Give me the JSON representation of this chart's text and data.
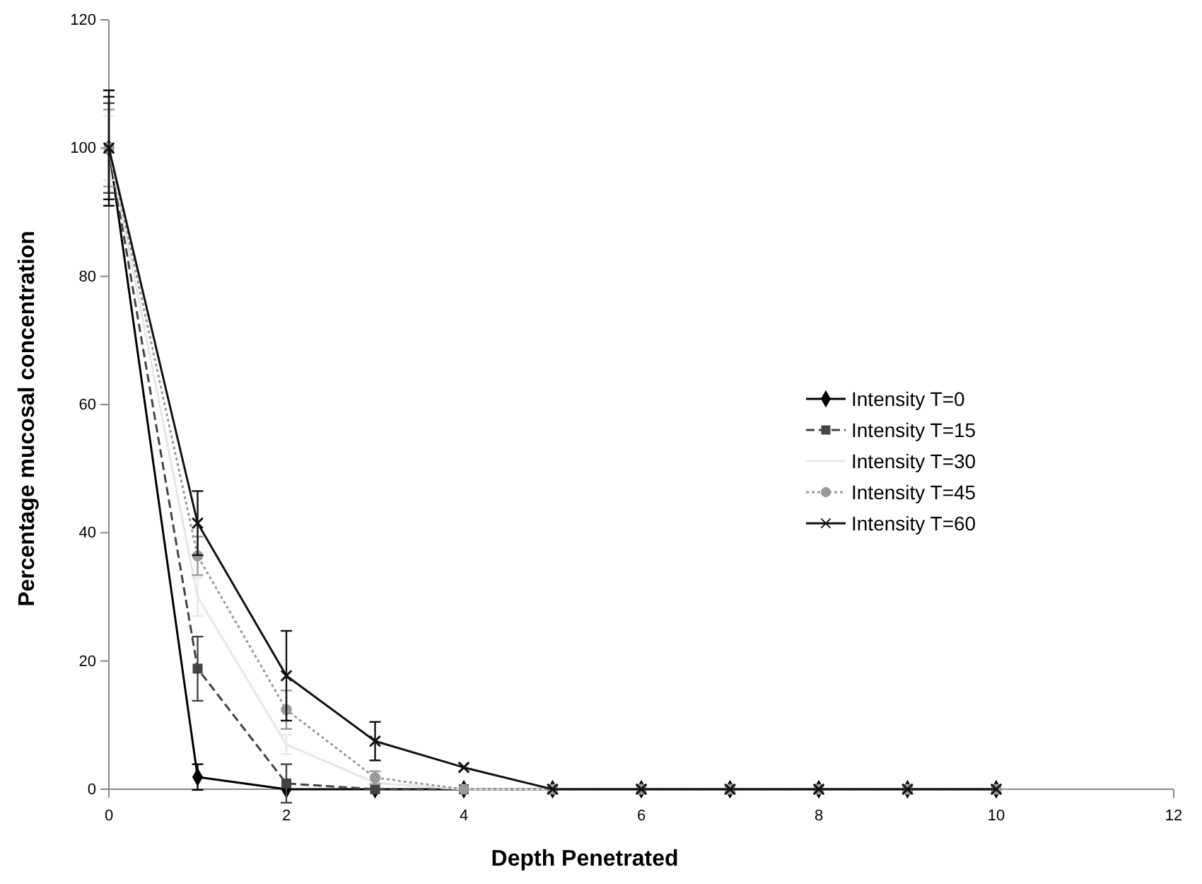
{
  "chart_data": {
    "type": "line",
    "xlabel": "Depth Penetrated",
    "ylabel": "Percentage mucosal concentration",
    "x": [
      0,
      1,
      2,
      3,
      4,
      5,
      6,
      7,
      8,
      9,
      10
    ],
    "xlim": [
      0,
      12
    ],
    "xticks": [
      0,
      2,
      4,
      6,
      8,
      10,
      12
    ],
    "ylim": [
      0,
      120
    ],
    "yticks": [
      0,
      20,
      40,
      60,
      80,
      100,
      120
    ],
    "grid": false,
    "legend": "right",
    "series": [
      {
        "name": "Intensity T=0",
        "color": "#000000",
        "marker": "diamond",
        "line_style": "solid",
        "values": [
          100,
          1.9,
          0,
          0,
          0,
          0,
          0,
          0,
          0,
          0,
          0
        ],
        "errors": [
          9,
          2,
          null,
          null,
          null,
          null,
          null,
          null,
          null,
          null,
          null
        ]
      },
      {
        "name": "Intensity T=15",
        "color": "#444444",
        "marker": "square",
        "line_style": "dashed",
        "values": [
          100,
          18.8,
          0.9,
          0,
          0,
          0,
          0,
          0,
          0,
          0,
          0
        ],
        "errors": [
          7,
          5,
          3,
          null,
          null,
          null,
          null,
          null,
          null,
          null,
          null
        ]
      },
      {
        "name": "Intensity T=30",
        "color": "#e6e6e6",
        "marker": "none",
        "line_style": "solid",
        "values": [
          100,
          30,
          7,
          1,
          0,
          0,
          0,
          0,
          0,
          0,
          0
        ],
        "errors": [
          5,
          3,
          1.5,
          null,
          null,
          null,
          null,
          null,
          null,
          null,
          null
        ]
      },
      {
        "name": "Intensity T=45",
        "color": "#999999",
        "marker": "circle",
        "line_style": "dotted",
        "values": [
          100,
          36.4,
          12.4,
          1.8,
          0,
          0,
          0,
          0,
          0,
          0,
          0
        ],
        "errors": [
          6,
          3,
          3,
          1,
          null,
          null,
          null,
          null,
          null,
          null,
          null
        ]
      },
      {
        "name": "Intensity T=60",
        "color": "#111111",
        "marker": "cross",
        "line_style": "solid",
        "values": [
          100,
          41.5,
          17.7,
          7.5,
          3.4,
          0,
          0,
          0,
          0,
          0,
          0
        ],
        "errors": [
          8,
          5,
          7,
          3,
          null,
          null,
          null,
          null,
          null,
          null,
          null
        ]
      }
    ]
  }
}
